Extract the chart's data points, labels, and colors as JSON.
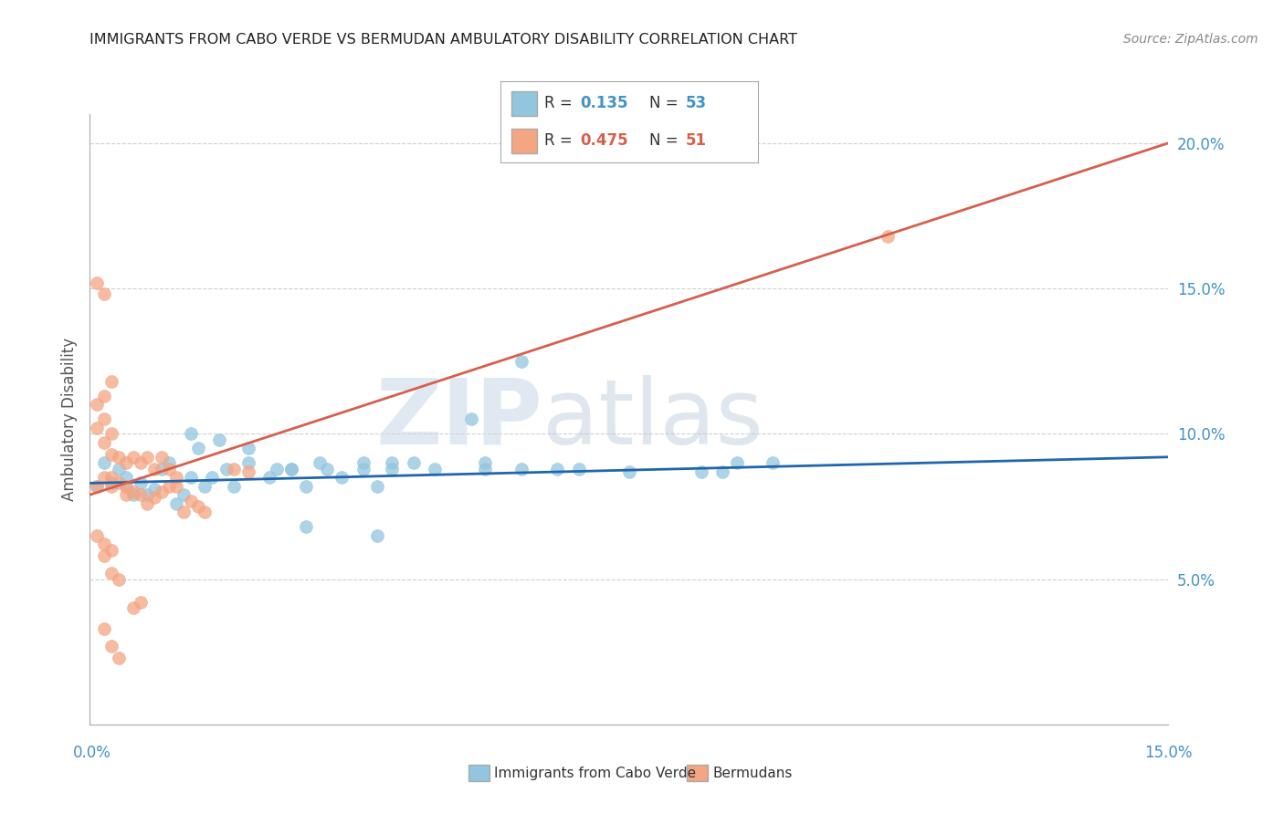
{
  "title": "IMMIGRANTS FROM CABO VERDE VS BERMUDAN AMBULATORY DISABILITY CORRELATION CHART",
  "source": "Source: ZipAtlas.com",
  "ylabel": "Ambulatory Disability",
  "legend_blue_label": "Immigrants from Cabo Verde",
  "legend_pink_label": "Bermudans",
  "blue_R": 0.135,
  "blue_N": 53,
  "pink_R": 0.475,
  "pink_N": 51,
  "blue_color": "#92c5de",
  "blue_line_color": "#2166ac",
  "pink_color": "#f4a582",
  "pink_line_color": "#d6604d",
  "blue_scatter": [
    [
      0.001,
      0.082
    ],
    [
      0.002,
      0.09
    ],
    [
      0.003,
      0.083
    ],
    [
      0.004,
      0.088
    ],
    [
      0.005,
      0.085
    ],
    [
      0.005,
      0.082
    ],
    [
      0.006,
      0.079
    ],
    [
      0.007,
      0.083
    ],
    [
      0.008,
      0.079
    ],
    [
      0.009,
      0.081
    ],
    [
      0.01,
      0.088
    ],
    [
      0.011,
      0.09
    ],
    [
      0.012,
      0.076
    ],
    [
      0.013,
      0.079
    ],
    [
      0.014,
      0.085
    ],
    [
      0.015,
      0.095
    ],
    [
      0.016,
      0.082
    ],
    [
      0.017,
      0.085
    ],
    [
      0.019,
      0.088
    ],
    [
      0.02,
      0.082
    ],
    [
      0.022,
      0.09
    ],
    [
      0.025,
      0.085
    ],
    [
      0.028,
      0.088
    ],
    [
      0.03,
      0.082
    ],
    [
      0.032,
      0.09
    ],
    [
      0.035,
      0.085
    ],
    [
      0.038,
      0.088
    ],
    [
      0.04,
      0.082
    ],
    [
      0.014,
      0.1
    ],
    [
      0.018,
      0.098
    ],
    [
      0.022,
      0.095
    ],
    [
      0.026,
      0.088
    ],
    [
      0.028,
      0.088
    ],
    [
      0.033,
      0.088
    ],
    [
      0.038,
      0.09
    ],
    [
      0.042,
      0.09
    ],
    [
      0.045,
      0.09
    ],
    [
      0.055,
      0.088
    ],
    [
      0.06,
      0.088
    ],
    [
      0.068,
      0.088
    ],
    [
      0.075,
      0.087
    ],
    [
      0.085,
      0.087
    ],
    [
      0.088,
      0.087
    ],
    [
      0.09,
      0.09
    ],
    [
      0.095,
      0.09
    ],
    [
      0.053,
      0.105
    ],
    [
      0.065,
      0.088
    ],
    [
      0.048,
      0.088
    ],
    [
      0.042,
      0.088
    ],
    [
      0.055,
      0.09
    ],
    [
      0.06,
      0.125
    ],
    [
      0.03,
      0.068
    ],
    [
      0.04,
      0.065
    ]
  ],
  "pink_scatter": [
    [
      0.001,
      0.082
    ],
    [
      0.002,
      0.085
    ],
    [
      0.003,
      0.082
    ],
    [
      0.004,
      0.083
    ],
    [
      0.005,
      0.079
    ],
    [
      0.006,
      0.08
    ],
    [
      0.007,
      0.079
    ],
    [
      0.008,
      0.076
    ],
    [
      0.009,
      0.078
    ],
    [
      0.01,
      0.08
    ],
    [
      0.011,
      0.082
    ],
    [
      0.012,
      0.082
    ],
    [
      0.013,
      0.073
    ],
    [
      0.014,
      0.077
    ],
    [
      0.015,
      0.075
    ],
    [
      0.016,
      0.073
    ],
    [
      0.005,
      0.09
    ],
    [
      0.006,
      0.092
    ],
    [
      0.007,
      0.09
    ],
    [
      0.008,
      0.092
    ],
    [
      0.009,
      0.088
    ],
    [
      0.01,
      0.092
    ],
    [
      0.011,
      0.088
    ],
    [
      0.012,
      0.085
    ],
    [
      0.003,
      0.093
    ],
    [
      0.004,
      0.092
    ],
    [
      0.002,
      0.097
    ],
    [
      0.003,
      0.1
    ],
    [
      0.001,
      0.102
    ],
    [
      0.002,
      0.105
    ],
    [
      0.001,
      0.11
    ],
    [
      0.002,
      0.113
    ],
    [
      0.003,
      0.118
    ],
    [
      0.001,
      0.152
    ],
    [
      0.002,
      0.148
    ],
    [
      0.001,
      0.065
    ],
    [
      0.002,
      0.062
    ],
    [
      0.003,
      0.06
    ],
    [
      0.002,
      0.058
    ],
    [
      0.003,
      0.052
    ],
    [
      0.004,
      0.05
    ],
    [
      0.002,
      0.033
    ],
    [
      0.003,
      0.027
    ],
    [
      0.004,
      0.023
    ],
    [
      0.006,
      0.04
    ],
    [
      0.007,
      0.042
    ],
    [
      0.02,
      0.088
    ],
    [
      0.022,
      0.087
    ],
    [
      0.003,
      0.085
    ],
    [
      0.005,
      0.082
    ],
    [
      0.111,
      0.168
    ]
  ],
  "xlim": [
    0.0,
    0.15
  ],
  "ylim": [
    0.0,
    0.21
  ],
  "yticks": [
    0.05,
    0.1,
    0.15,
    0.2
  ],
  "ytick_labels": [
    "5.0%",
    "10.0%",
    "15.0%",
    "20.0%"
  ],
  "xtick_labels": [
    "0.0%",
    "15.0%"
  ],
  "blue_line": [
    0.0,
    0.083,
    0.15,
    0.092
  ],
  "pink_line": [
    0.0,
    0.079,
    0.15,
    0.2
  ],
  "watermark_zip": "ZIP",
  "watermark_atlas": "atlas",
  "background_color": "#ffffff",
  "grid_color": "#d0d0d0"
}
